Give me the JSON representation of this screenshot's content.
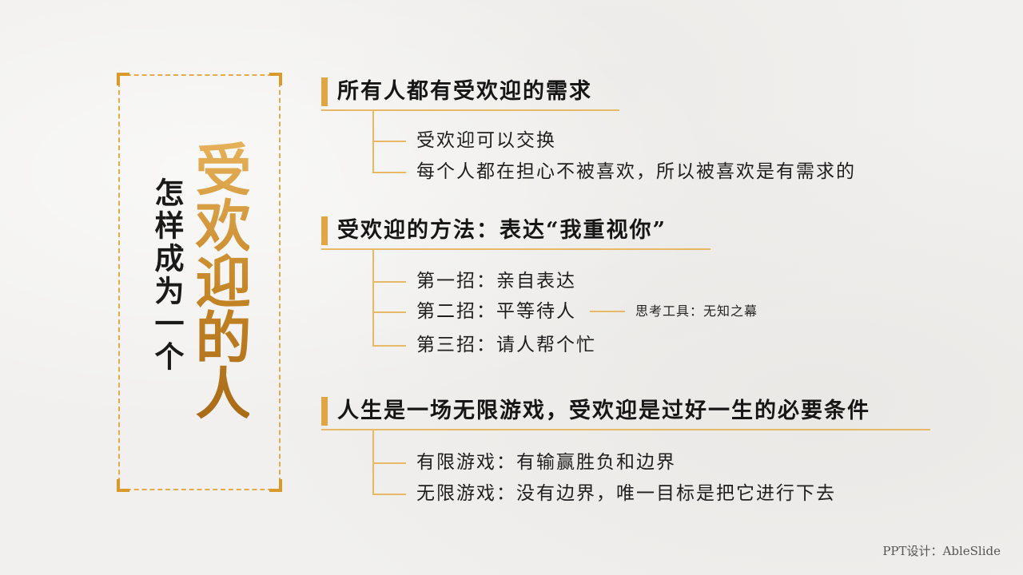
{
  "title": {
    "small": "怎样成为一个",
    "big": "受欢迎的人"
  },
  "sections": [
    {
      "heading": "所有人都有受欢迎的需求",
      "items": [
        "受欢迎可以交换",
        "每个人都在担心不被喜欢，所以被喜欢是有需求的"
      ]
    },
    {
      "heading": "受欢迎的方法：表达“我重视你”",
      "items": [
        "第一招：亲自表达",
        "第二招：平等待人",
        "第三招：请人帮个忙"
      ],
      "note": "思考工具：无知之幕"
    },
    {
      "heading": "人生是一场无限游戏，受欢迎是过好一生的必要条件",
      "items": [
        "有限游戏：有输赢胜负和边界",
        "无限游戏：没有边界，唯一目标是把它进行下去"
      ]
    }
  ],
  "credit": "PPT设计：AbleSlide",
  "colors": {
    "accent": "#e0a646",
    "title_gold": "#c48526",
    "background": "#f1f0ee"
  }
}
